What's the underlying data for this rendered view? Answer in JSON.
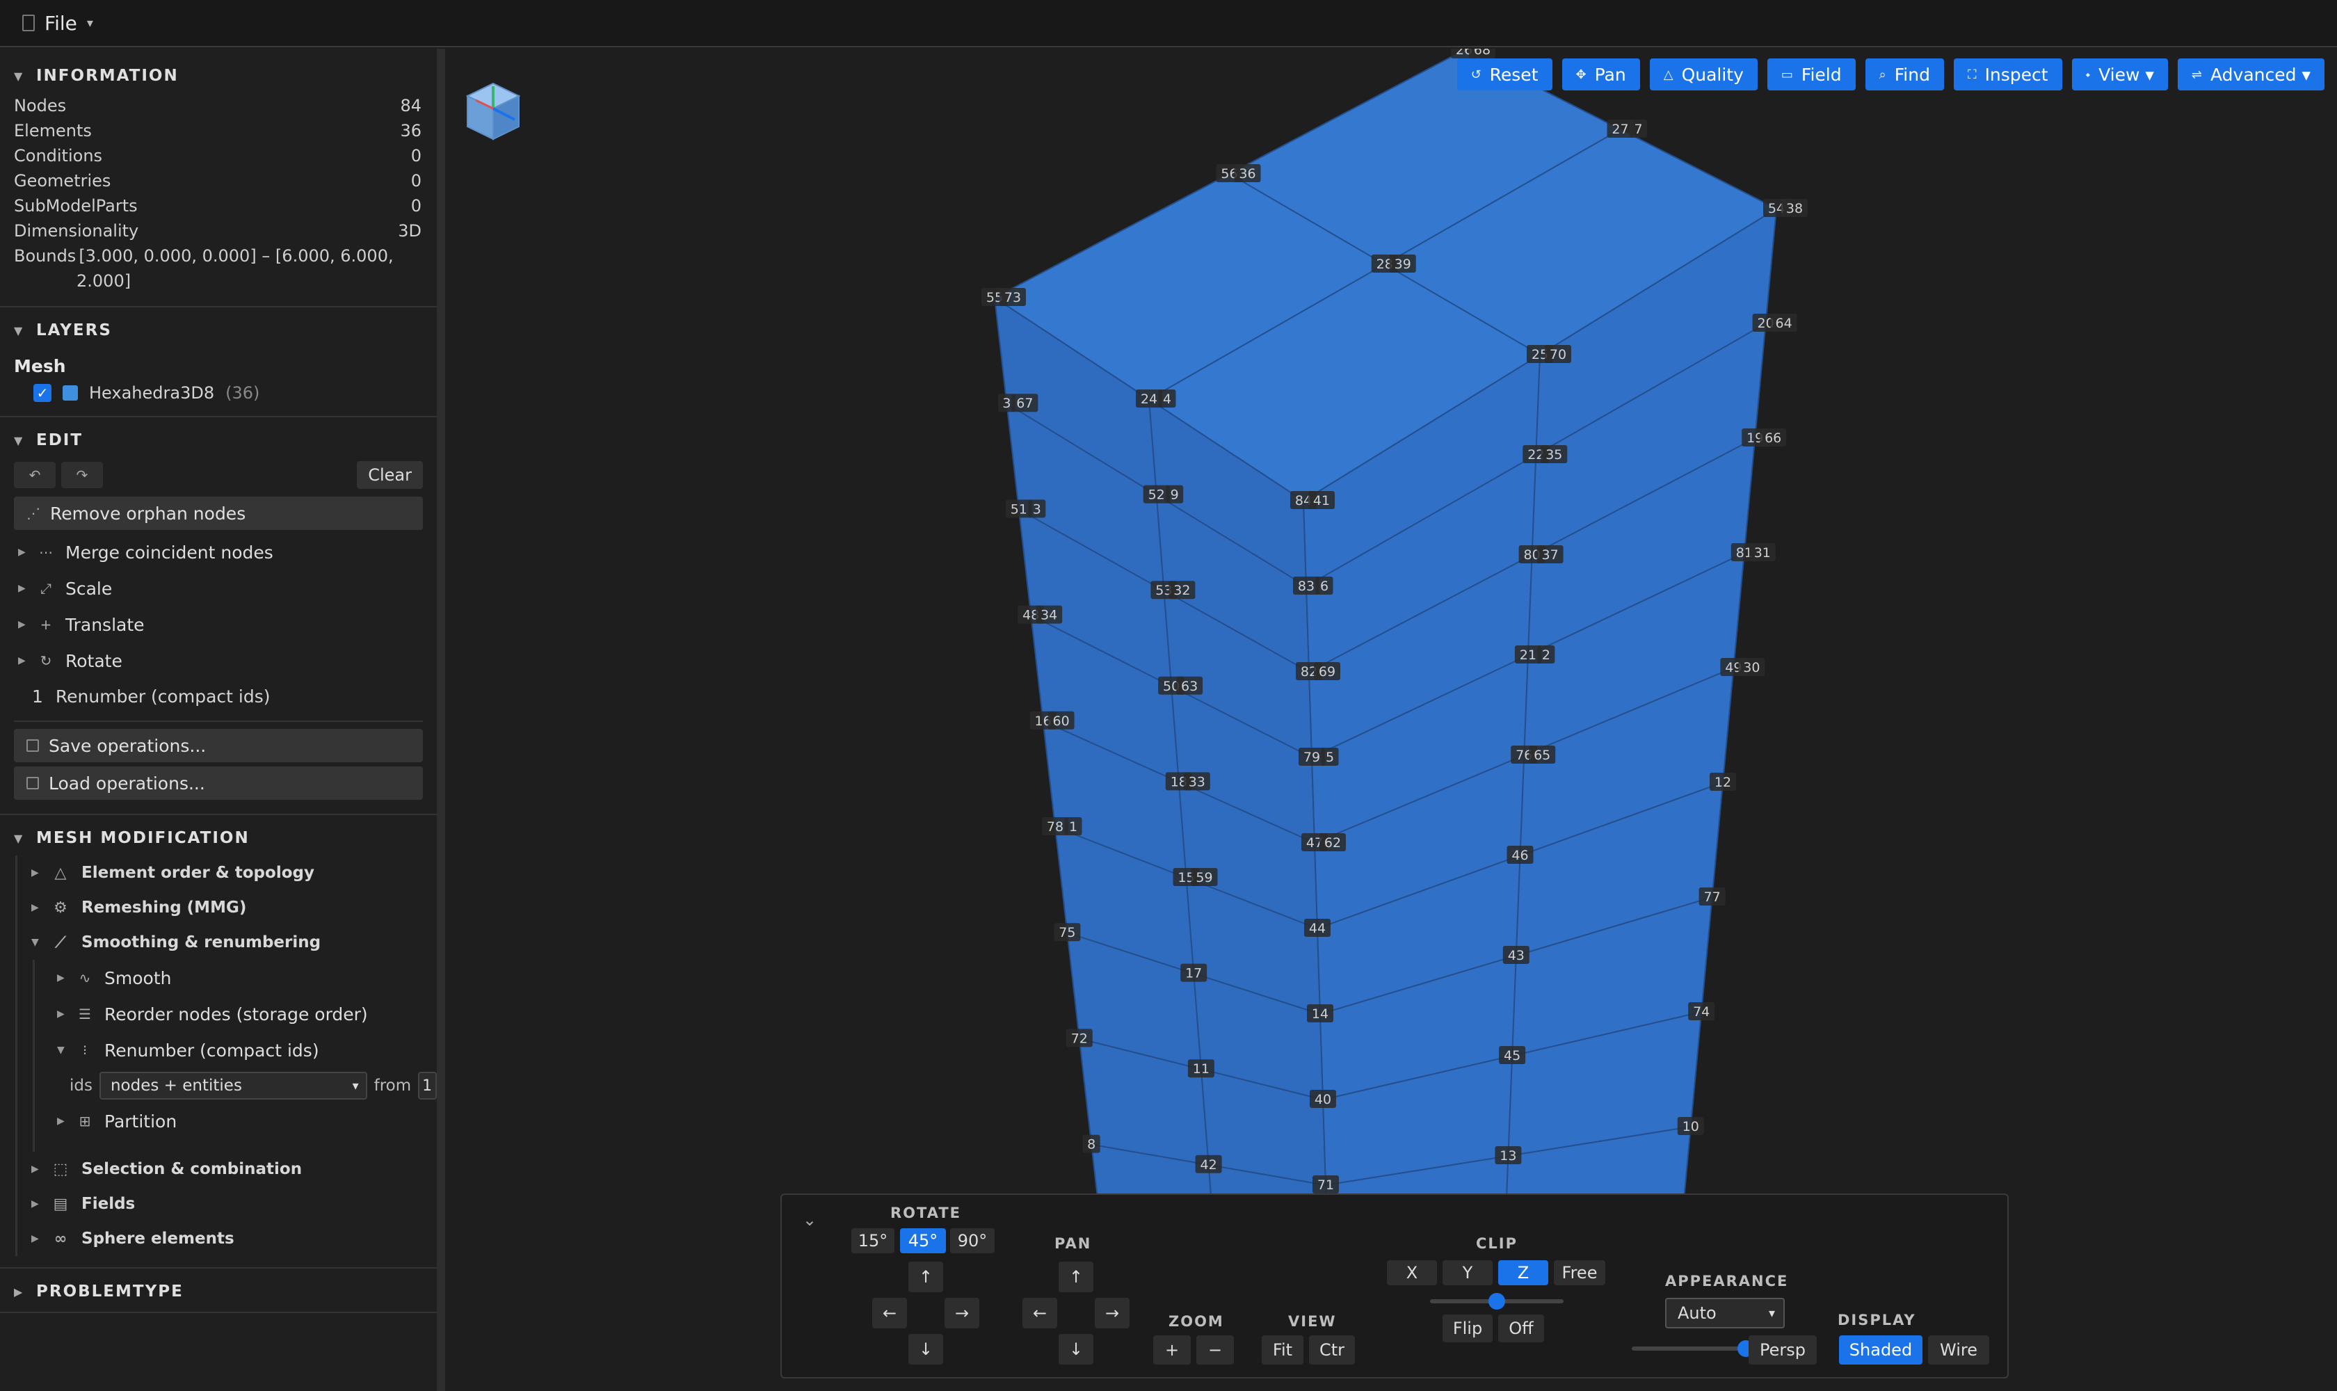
{
  "menu": {
    "file": "File",
    "caret": "▾"
  },
  "info": {
    "title": "INFORMATION",
    "rows": [
      {
        "label": "Nodes",
        "value": "84"
      },
      {
        "label": "Elements",
        "value": "36"
      },
      {
        "label": "Conditions",
        "value": "0"
      },
      {
        "label": "Geometries",
        "value": "0"
      },
      {
        "label": "SubModelParts",
        "value": "0"
      },
      {
        "label": "Dimensionality",
        "value": "3D"
      }
    ],
    "bounds_label": "Bounds",
    "bounds_line1": "[3.000, 0.000, 0.000] – [6.000, 6.000,",
    "bounds_line2": "2.000]"
  },
  "layers": {
    "title": "LAYERS",
    "group": "Mesh",
    "item_name": "Hexahedra3D8",
    "item_count": "(36)",
    "color": "#3f8fe0"
  },
  "edit": {
    "title": "EDIT",
    "undo_icon": "↶",
    "redo_icon": "↷",
    "clear": "Clear",
    "remove_orphan": "Remove orphan nodes",
    "ops": [
      {
        "icon": "⋯",
        "label": "Merge coincident nodes"
      },
      {
        "icon": "⤢",
        "label": "Scale"
      },
      {
        "icon": "+",
        "label": "Translate"
      },
      {
        "icon": "↻",
        "label": "Rotate"
      }
    ],
    "renumber_index": "1",
    "renumber_label": "Renumber (compact ids)",
    "save": "Save operations...",
    "load": "Load operations..."
  },
  "mesh_mod": {
    "title": "MESH MODIFICATION",
    "groups_top": [
      {
        "icon": "△",
        "label": "Element order & topology"
      },
      {
        "icon": "⚙",
        "label": "Remeshing (MMG)"
      }
    ],
    "smoothing": {
      "icon": "⟋",
      "label": "Smoothing & renumbering",
      "items": [
        {
          "icon": "∿",
          "label": "Smooth"
        },
        {
          "icon": "☰",
          "label": "Reorder nodes (storage order)"
        }
      ],
      "renumber": {
        "icon": "⁝",
        "label": "Renumber (compact ids)"
      },
      "ids_label": "ids",
      "ids_value": "nodes + entities",
      "from_label": "from",
      "from_value": "1",
      "partition": {
        "icon": "⊞",
        "label": "Partition"
      }
    },
    "groups_bottom": [
      {
        "icon": "⬚",
        "label": "Selection & combination"
      },
      {
        "icon": "▤",
        "label": "Fields"
      },
      {
        "icon": "∞",
        "label": "Sphere elements"
      }
    ]
  },
  "problemtype": {
    "title": "PROBLEMTYPE"
  },
  "toolbar": [
    {
      "icon": "↺",
      "label": "Reset"
    },
    {
      "icon": "✥",
      "label": "Pan"
    },
    {
      "icon": "△",
      "label": "Quality"
    },
    {
      "icon": "▭",
      "label": "Field"
    },
    {
      "icon": "⌕",
      "label": "Find"
    },
    {
      "icon": "⛶",
      "label": "Inspect"
    },
    {
      "icon": "⬩",
      "label": "View ▾"
    },
    {
      "icon": "⇌",
      "label": "Advanced ▾"
    }
  ],
  "controls": {
    "collapse": "⌄",
    "rotate": {
      "label": "ROTATE",
      "angles": [
        "15°",
        "45°",
        "90°"
      ],
      "active": "45°"
    },
    "pan": {
      "label": "PAN"
    },
    "arrows": {
      "up": "↑",
      "down": "↓",
      "left": "←",
      "right": "→"
    },
    "zoom": {
      "label": "ZOOM",
      "plus": "+",
      "minus": "−"
    },
    "view": {
      "label": "VIEW",
      "fit": "Fit",
      "ctr": "Ctr"
    },
    "clip": {
      "label": "CLIP",
      "axes": [
        "X",
        "Y",
        "Z"
      ],
      "active": "Z",
      "free": "Free",
      "flip": "Flip",
      "off": "Off",
      "level": 0.5
    },
    "appearance": {
      "label": "APPEARANCE",
      "value": "Auto",
      "level": 1.0,
      "persp": "Persp"
    },
    "display": {
      "label": "DISPLAY",
      "shaded": "Shaded",
      "wire": "Wire"
    }
  },
  "mesh": {
    "face_colors": {
      "top": "#3478cf",
      "left": "#2f6cc0",
      "right": "#3070c6",
      "edge": "#244e8c"
    },
    "node_labels": [
      "28",
      "27",
      "56",
      "26",
      "55",
      "24",
      "84",
      "25",
      "54",
      "3",
      "52",
      "83",
      "22",
      "20",
      "51",
      "53",
      "82",
      "80",
      "19",
      "48",
      "50",
      "79",
      "21",
      "81",
      "16",
      "18",
      "47",
      "76",
      "49",
      "78",
      "15",
      "44",
      "46",
      "12",
      "75",
      "17",
      "14",
      "43",
      "77",
      "72",
      "11",
      "40",
      "45",
      "74",
      "8",
      "42",
      "71",
      "13",
      "10",
      "39",
      "7",
      "36",
      "68",
      "73",
      "4",
      "41",
      "70",
      "38",
      "67",
      "9",
      "6",
      "35",
      "64",
      "3",
      "32",
      "69",
      "37",
      "66",
      "34",
      "63",
      "5",
      "2",
      "31",
      "60",
      "33",
      "62",
      "65",
      "30",
      "1",
      "59"
    ]
  }
}
